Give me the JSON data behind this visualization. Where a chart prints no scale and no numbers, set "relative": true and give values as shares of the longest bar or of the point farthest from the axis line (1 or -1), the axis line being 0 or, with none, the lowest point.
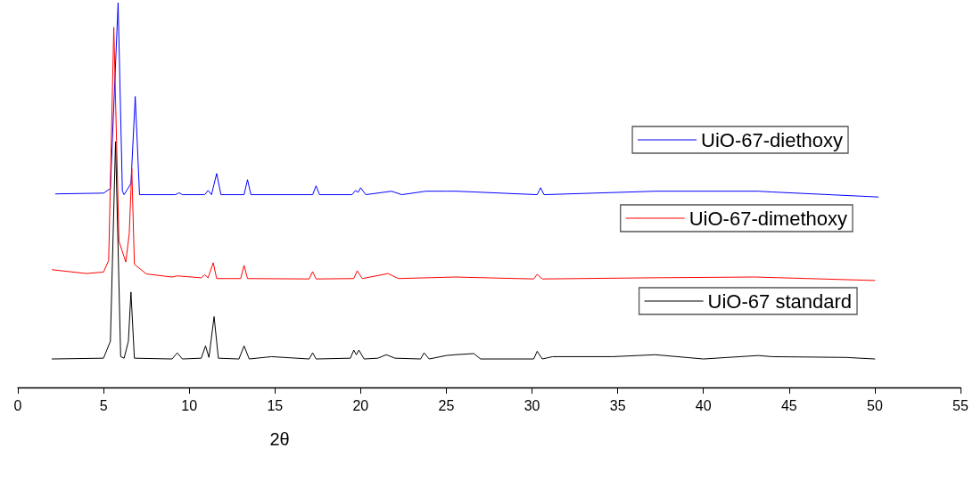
{
  "chart_data": {
    "type": "line",
    "relative": true,
    "xlabel": "2θ",
    "xlim": [
      0,
      55
    ],
    "xticks": [
      0,
      5,
      10,
      15,
      20,
      25,
      30,
      35,
      40,
      45,
      50,
      55
    ],
    "grid": false,
    "legend": "right",
    "marker": "none",
    "line_style": "solid",
    "tick_labels": "x",
    "series": [
      {
        "name": "UiO-67-diethoxy",
        "color": "#0000ff",
        "x": [
          2.2,
          5.0,
          5.4,
          5.85,
          6.1,
          6.2,
          6.6,
          6.85,
          7.1,
          9.2,
          9.4,
          9.6,
          10.9,
          11.1,
          11.3,
          11.6,
          11.85,
          13.2,
          13.4,
          13.6,
          17.2,
          17.4,
          17.6,
          19.5,
          19.7,
          19.85,
          20.0,
          20.3,
          21.8,
          22.4,
          23.8,
          25.0,
          25.6,
          30.3,
          30.5,
          30.7,
          37.2,
          43.2,
          44.0,
          50.2
        ],
        "values": [
          0.503,
          0.505,
          0.517,
          1.0,
          0.51,
          0.501,
          0.53,
          0.756,
          0.501,
          0.501,
          0.506,
          0.501,
          0.501,
          0.512,
          0.501,
          0.556,
          0.501,
          0.501,
          0.54,
          0.501,
          0.501,
          0.524,
          0.501,
          0.501,
          0.512,
          0.507,
          0.519,
          0.501,
          0.51,
          0.501,
          0.51,
          0.51,
          0.51,
          0.501,
          0.519,
          0.501,
          0.51,
          0.51,
          0.508,
          0.495
        ]
      },
      {
        "name": "UiO-67-dimethoxy",
        "color": "#ff0000",
        "x": [
          2.0,
          4.0,
          5.0,
          5.3,
          5.6,
          5.9,
          6.3,
          6.5,
          6.65,
          6.8,
          7.5,
          9.0,
          9.3,
          10.7,
          10.9,
          11.1,
          11.4,
          11.6,
          13.0,
          13.2,
          13.4,
          17.0,
          17.2,
          17.4,
          19.6,
          19.8,
          20.1,
          21.6,
          22.2,
          25.5,
          30.1,
          30.3,
          30.6,
          37.0,
          43.0,
          50.0
        ],
        "values": [
          0.306,
          0.296,
          0.3,
          0.33,
          0.936,
          0.38,
          0.326,
          0.4,
          0.568,
          0.32,
          0.295,
          0.287,
          0.29,
          0.285,
          0.293,
          0.285,
          0.324,
          0.283,
          0.283,
          0.317,
          0.283,
          0.282,
          0.301,
          0.282,
          0.283,
          0.303,
          0.283,
          0.296,
          0.283,
          0.287,
          0.282,
          0.294,
          0.282,
          0.285,
          0.287,
          0.278
        ]
      },
      {
        "name": "UiO-67 standard",
        "color": "#000000",
        "x": [
          2.0,
          5.0,
          5.4,
          5.7,
          6.0,
          6.2,
          6.45,
          6.6,
          6.8,
          9.0,
          9.3,
          9.6,
          10.7,
          10.95,
          11.15,
          11.45,
          11.7,
          12.9,
          13.2,
          13.5,
          14.8,
          17.0,
          17.2,
          17.4,
          19.4,
          19.6,
          19.75,
          19.9,
          20.2,
          21.0,
          21.5,
          22.0,
          23.5,
          23.7,
          24.0,
          25.0,
          25.5,
          26.6,
          27.0,
          30.1,
          30.3,
          30.6,
          31.2,
          34.7,
          37.2,
          40.0,
          43.2,
          44.0,
          48.3,
          50.0
        ],
        "values": [
          0.074,
          0.076,
          0.12,
          0.639,
          0.08,
          0.076,
          0.12,
          0.248,
          0.076,
          0.074,
          0.09,
          0.074,
          0.076,
          0.108,
          0.078,
          0.184,
          0.076,
          0.074,
          0.108,
          0.074,
          0.08,
          0.074,
          0.09,
          0.074,
          0.076,
          0.097,
          0.085,
          0.097,
          0.074,
          0.076,
          0.085,
          0.076,
          0.074,
          0.09,
          0.074,
          0.083,
          0.085,
          0.088,
          0.074,
          0.074,
          0.094,
          0.074,
          0.08,
          0.08,
          0.085,
          0.074,
          0.083,
          0.08,
          0.078,
          0.074
        ]
      }
    ]
  }
}
